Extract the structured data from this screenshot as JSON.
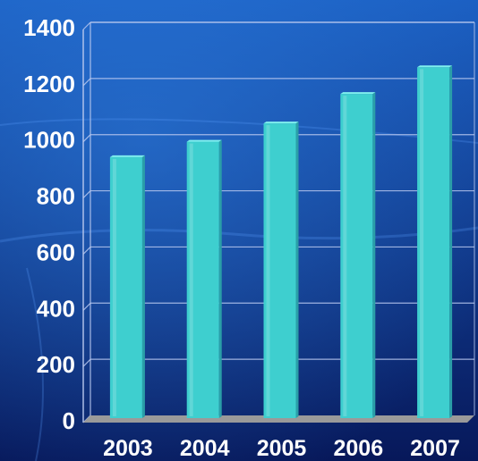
{
  "chart_data": {
    "type": "bar",
    "categories": [
      "2003",
      "2004",
      "2005",
      "2006",
      "2007"
    ],
    "values": [
      920,
      975,
      1040,
      1145,
      1240
    ],
    "ylim": [
      0,
      1400
    ],
    "yticks": [
      "0",
      "200",
      "400",
      "600",
      "800",
      "1000",
      "1200",
      "1400"
    ],
    "title": "",
    "xlabel": "",
    "ylabel": "",
    "grid": true,
    "legend": "none"
  },
  "colors": {
    "background_top": "#1b5fc2",
    "background_bottom": "#07185a",
    "bar_face": "#3ecfcf",
    "bar_side": "#2a9fa8",
    "bar_top": "#7ff0ee",
    "floor": "#9a9a9a",
    "gridline": "#b8c8ee",
    "text": "#ffffff"
  }
}
